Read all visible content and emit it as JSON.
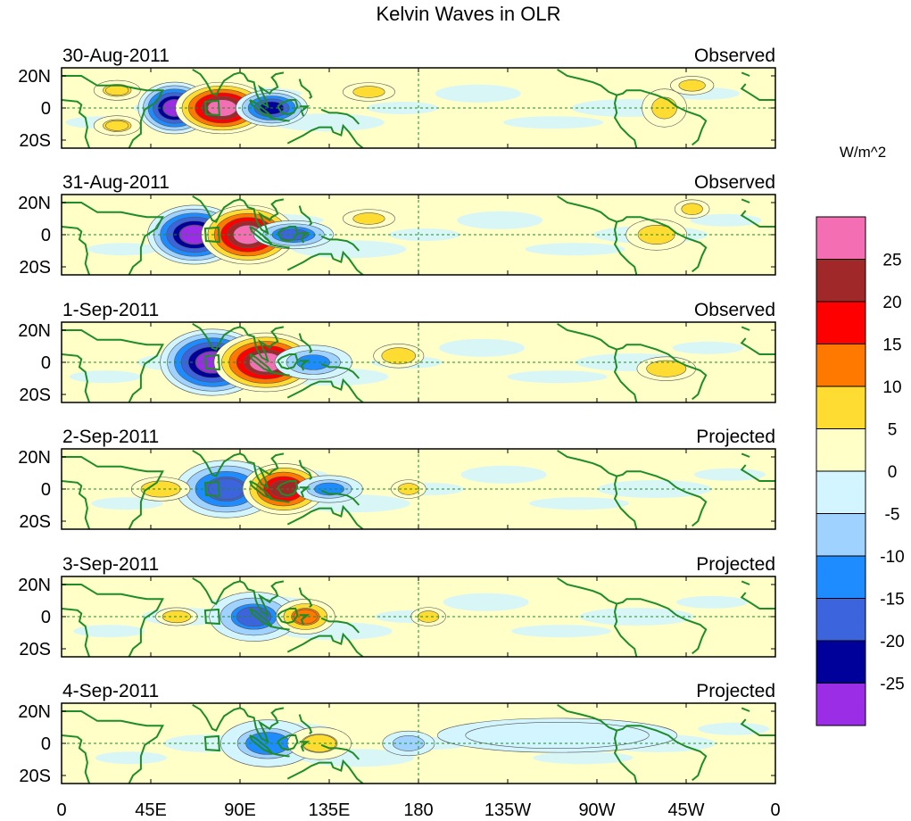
{
  "chart_data": {
    "type": "heatmap",
    "title": "Kelvin Waves in OLR",
    "variable": "OLR anomaly",
    "units_label": "W/m^2",
    "x_ticks": [
      "0",
      "45E",
      "90E",
      "135E",
      "180",
      "135W",
      "90W",
      "45W",
      "0"
    ],
    "x_tick_values": [
      0,
      45,
      90,
      135,
      180,
      225,
      270,
      315,
      360
    ],
    "y_ticks": [
      "20N",
      "0",
      "20S"
    ],
    "y_tick_values": [
      20,
      0,
      -20
    ],
    "xlim": [
      0,
      360
    ],
    "ylim": [
      -25,
      25
    ],
    "colorbar": {
      "levels": [
        "25",
        "20",
        "15",
        "10",
        "5",
        "0",
        "-5",
        "-10",
        "-15",
        "-20",
        "-25"
      ],
      "colors": [
        "#f46eb4",
        "#a02828",
        "#ff0000",
        "#ff7800",
        "#ffdc32",
        "#ffffc8",
        "#d2f5ff",
        "#a0d2ff",
        "#1e8cff",
        "#3c64dc",
        "#00009b",
        "#9b2de6"
      ]
    },
    "panels": [
      {
        "date": "30-Aug-2011",
        "label": "Observed",
        "anomalies": [
          {
            "lon": 57,
            "lat": 0,
            "value": -28,
            "wx": 7,
            "wy": 7
          },
          {
            "lon": 81,
            "lat": 0,
            "value": 27,
            "wx": 9,
            "wy": 7
          },
          {
            "lon": 106,
            "lat": 0,
            "value": -22,
            "wx": 7,
            "wy": 5
          },
          {
            "lon": 28,
            "lat": 11,
            "value": 9,
            "wx": 5,
            "wy": 3
          },
          {
            "lon": 28,
            "lat": -11,
            "value": 9,
            "wx": 5,
            "wy": 3
          },
          {
            "lon": 155,
            "lat": 10,
            "value": 6,
            "wx": 6,
            "wy": 3
          },
          {
            "lon": 304,
            "lat": 0,
            "value": 7,
            "wx": 5,
            "wy": 6
          },
          {
            "lon": 318,
            "lat": 14,
            "value": 6,
            "wx": 5,
            "wy": 3
          }
        ]
      },
      {
        "date": "31-Aug-2011",
        "label": "Observed",
        "anomalies": [
          {
            "lon": 67,
            "lat": 0,
            "value": -28,
            "wx": 9,
            "wy": 8
          },
          {
            "lon": 94,
            "lat": 0,
            "value": 27,
            "wx": 9,
            "wy": 8
          },
          {
            "lon": 117,
            "lat": 0,
            "value": -16,
            "wx": 8,
            "wy": 4
          },
          {
            "lon": 155,
            "lat": 10,
            "value": 6,
            "wx": 6,
            "wy": 3
          },
          {
            "lon": 300,
            "lat": 0,
            "value": 6,
            "wx": 7,
            "wy": 5
          },
          {
            "lon": 318,
            "lat": 16,
            "value": 6,
            "wx": 4,
            "wy": 3
          }
        ]
      },
      {
        "date": "1-Sep-2011",
        "label": "Observed",
        "anomalies": [
          {
            "lon": 76,
            "lat": 0,
            "value": -28,
            "wx": 10,
            "wy": 9
          },
          {
            "lon": 103,
            "lat": 0,
            "value": 26,
            "wx": 10,
            "wy": 8
          },
          {
            "lon": 127,
            "lat": 0,
            "value": -12,
            "wx": 8,
            "wy": 5
          },
          {
            "lon": 170,
            "lat": 4,
            "value": 5,
            "wx": 6,
            "wy": 4
          },
          {
            "lon": 305,
            "lat": -4,
            "value": 5,
            "wx": 7,
            "wy": 4
          }
        ]
      },
      {
        "date": "2-Sep-2011",
        "label": "Projected",
        "anomalies": [
          {
            "lon": 83,
            "lat": 0,
            "value": -19,
            "wx": 10,
            "wy": 8
          },
          {
            "lon": 112,
            "lat": 0,
            "value": 22,
            "wx": 8,
            "wy": 7
          },
          {
            "lon": 135,
            "lat": 0,
            "value": -11,
            "wx": 7,
            "wy": 4
          },
          {
            "lon": 175,
            "lat": 0,
            "value": 6,
            "wx": 4,
            "wy": 3
          },
          {
            "lon": 50,
            "lat": 0,
            "value": 5,
            "wx": 7,
            "wy": 4
          }
        ]
      },
      {
        "date": "3-Sep-2011",
        "label": "Projected",
        "anomalies": [
          {
            "lon": 97,
            "lat": 0,
            "value": -15,
            "wx": 9,
            "wy": 7
          },
          {
            "lon": 123,
            "lat": 0,
            "value": 14,
            "wx": 6,
            "wy": 5
          },
          {
            "lon": 185,
            "lat": 0,
            "value": 6,
            "wx": 4,
            "wy": 3
          },
          {
            "lon": 58,
            "lat": 0,
            "value": 5,
            "wx": 5,
            "wy": 3
          }
        ]
      },
      {
        "date": "4-Sep-2011",
        "label": "Projected",
        "anomalies": [
          {
            "lon": 104,
            "lat": 0,
            "value": -10,
            "wx": 10,
            "wy": 7
          },
          {
            "lon": 130,
            "lat": 0,
            "value": 8,
            "wx": 7,
            "wy": 5
          },
          {
            "lon": 175,
            "lat": 0,
            "value": -6,
            "wx": 6,
            "wy": 4
          },
          {
            "lon": 250,
            "lat": 5,
            "value": -4,
            "wx": 30,
            "wy": 6
          }
        ]
      }
    ]
  }
}
